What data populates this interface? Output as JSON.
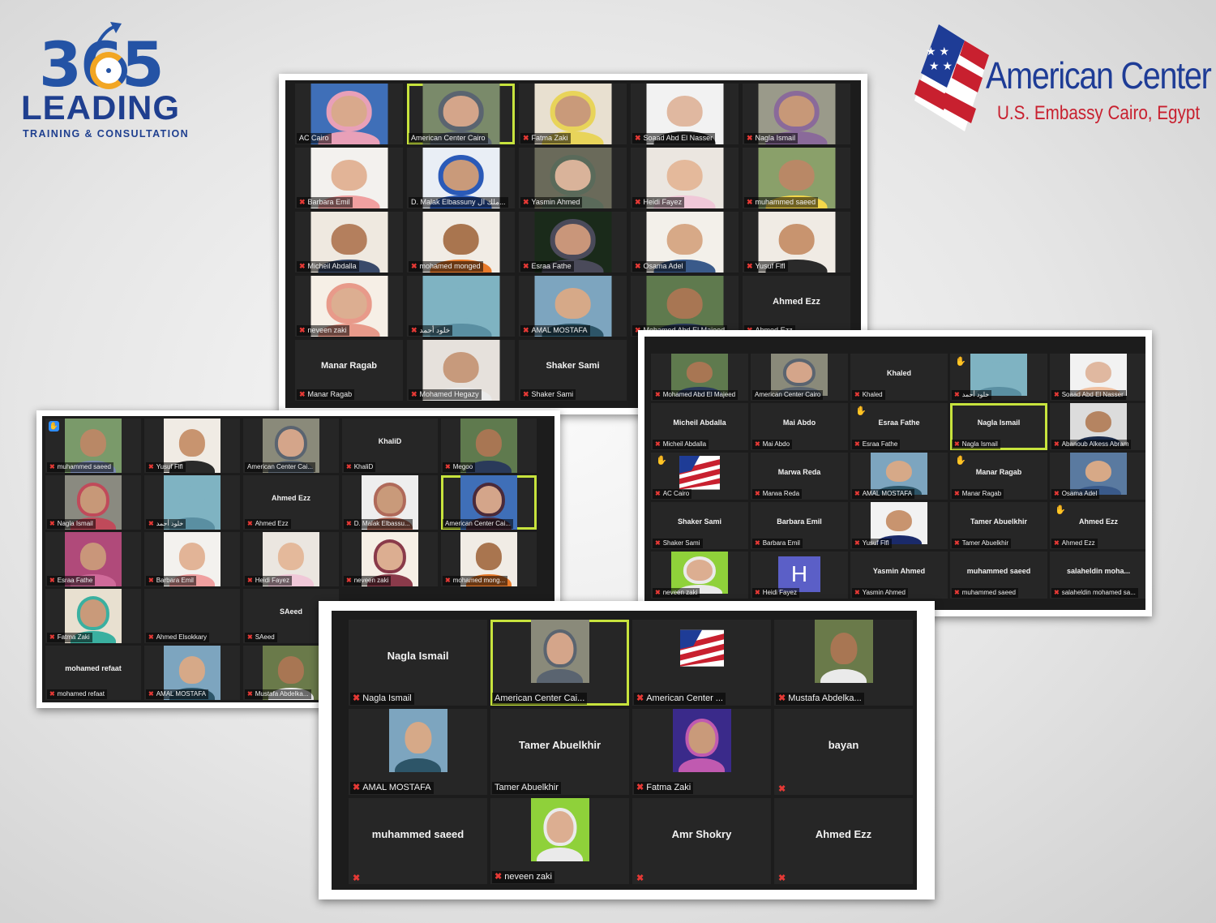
{
  "logos": {
    "leading": {
      "digits": "365",
      "word": "LEADING",
      "sub": "TRAINING & CONSULTATION",
      "colors": {
        "blue": "#2453a5",
        "orange": "#f2a623"
      }
    },
    "american_center": {
      "name": "American Center",
      "tagline": "U.S. Embassy Cairo, Egypt",
      "colors": {
        "blue": "#1e3c96",
        "red": "#c8202f"
      }
    }
  },
  "accent": "#c7e33d",
  "icons": {
    "muted_mic": "muted-mic-icon",
    "raised_hand": "raised-hand-icon",
    "reaction": "clap-reaction-icon"
  },
  "screen1": [
    {
      "name": "AC Cairo",
      "kind": "photo",
      "bg": "#3f6fb8",
      "skin": "#d9a98c",
      "cloth": "#e8a0b8",
      "scarf": true,
      "muted": false
    },
    {
      "name": "American Center Cairo",
      "kind": "photo",
      "bg": "#7a8a6a",
      "skin": "#d4a58a",
      "cloth": "#5a6470",
      "scarf": true,
      "active": true,
      "muted": false
    },
    {
      "name": "Fatma Zaki",
      "kind": "photo",
      "bg": "#e8e0d0",
      "skin": "#c99a7a",
      "cloth": "#e8d45a",
      "scarf": true,
      "muted": true
    },
    {
      "name": "Soaad Abd El Nasser",
      "kind": "photo",
      "bg": "#f2f2f2",
      "skin": "#e0b8a0",
      "cloth": "#2a2a2a",
      "scarf": false,
      "muted": true
    },
    {
      "name": "Nagla Ismail",
      "kind": "photo",
      "bg": "#9a9a8a",
      "skin": "#c79878",
      "cloth": "#8a6a9a",
      "scarf": true,
      "muted": true
    },
    {
      "name": "Barbara Emil",
      "kind": "photo",
      "bg": "#f3f1ee",
      "skin": "#e2b497",
      "cloth": "#f0a0a0",
      "scarf": false,
      "muted": true
    },
    {
      "name": "D. Malak Elbassuny ملك ال...",
      "kind": "photo",
      "bg": "#e9eef5",
      "skin": "#c99a7a",
      "cloth": "#2a5ab8",
      "scarf": true,
      "muted": false
    },
    {
      "name": "Yasmin Ahmed",
      "kind": "photo",
      "bg": "#6a6a5a",
      "skin": "#d9b39a",
      "cloth": "#5a6a5a",
      "scarf": true,
      "muted": true
    },
    {
      "name": "Heidi Fayez",
      "kind": "photo",
      "bg": "#ebe6e0",
      "skin": "#e4b99b",
      "cloth": "#f0c8d8",
      "scarf": false,
      "muted": true
    },
    {
      "name": "muhammed saeed",
      "kind": "photo",
      "bg": "#8aa06a",
      "skin": "#b98866",
      "cloth": "#f5d84a",
      "scarf": false,
      "muted": true
    },
    {
      "name": "Micheil Abdalla",
      "kind": "photo",
      "bg": "#efe9e0",
      "skin": "#b47f5d",
      "cloth": "#3a4a6a",
      "scarf": false,
      "muted": true
    },
    {
      "name": "mohamed monged",
      "kind": "photo",
      "bg": "#f1ece5",
      "skin": "#a9754f",
      "cloth": "#e87a2a",
      "scarf": false,
      "muted": true
    },
    {
      "name": "Esraa Fathe",
      "kind": "photo",
      "bg": "#1a2a1a",
      "skin": "#c9967a",
      "cloth": "#4a4a5a",
      "scarf": true,
      "muted": true
    },
    {
      "name": "Osama Adel",
      "kind": "photo",
      "bg": "#f3f0ea",
      "skin": "#d7a987",
      "cloth": "#3a5a8a",
      "scarf": false,
      "muted": true
    },
    {
      "name": "Yusuf Flfl",
      "kind": "photo",
      "bg": "#f0ebe4",
      "skin": "#c8946f",
      "cloth": "#2a2a2a",
      "scarf": false,
      "muted": true
    },
    {
      "name": "neveen zaki",
      "kind": "photo",
      "bg": "#f6efe6",
      "skin": "#dcae91",
      "cloth": "#e89a8a",
      "scarf": true,
      "muted": true
    },
    {
      "name": "خلود أحمد",
      "kind": "photo",
      "bg": "#7fb3c2",
      "skin": "#7fb3c2",
      "cloth": "#5a8fa2",
      "scarf": false,
      "muted": true
    },
    {
      "name": "AMAL MOSTAFA",
      "kind": "photo",
      "bg": "#7da5bf",
      "skin": "#d6a988",
      "cloth": "#2d5568",
      "scarf": false,
      "muted": true
    },
    {
      "name": "Mohamed Abd El Majeed",
      "kind": "photo",
      "bg": "#5f7a4e",
      "skin": "#a87653",
      "cloth": "#2a3a5a",
      "scarf": false,
      "muted": true
    },
    {
      "name": "Ahmed Ezz",
      "kind": "text",
      "muted": true
    },
    {
      "name": "Manar Ragab",
      "kind": "text",
      "muted": true
    },
    {
      "name": "Mohamed Hegazy",
      "kind": "photo",
      "bg": "#e6e1dc",
      "skin": "#c79a7c",
      "cloth": "#eaeaea",
      "scarf": false,
      "muted": true
    },
    {
      "name": "Shaker Sami",
      "kind": "text",
      "muted": true
    },
    {
      "name": "",
      "kind": "empty",
      "muted": false
    },
    {
      "name": "",
      "kind": "empty",
      "muted": false
    }
  ],
  "screen2": [
    {
      "name": "muhammed saeed",
      "kind": "photo",
      "bg": "#7a9a6a",
      "skin": "#b98866",
      "cloth": "#7a8ab0",
      "scarf": false,
      "muted": true,
      "raise": true
    },
    {
      "name": "Yusuf Flfl",
      "kind": "photo",
      "bg": "#f0ebe4",
      "skin": "#c8946f",
      "cloth": "#2a2a2a",
      "scarf": false,
      "muted": true
    },
    {
      "name": "American Center Cai...",
      "kind": "photo",
      "bg": "#8a8a7a",
      "skin": "#d4a58a",
      "cloth": "#5a6470",
      "scarf": true,
      "muted": false
    },
    {
      "name": "KhaliD",
      "kind": "text",
      "muted": true
    },
    {
      "name": "Megoo",
      "kind": "photo",
      "bg": "#5f7a4e",
      "skin": "#a87653",
      "cloth": "#2a3a5a",
      "scarf": false,
      "muted": true
    },
    {
      "name": "Nagla Ismail",
      "kind": "photo",
      "bg": "#8a8a80",
      "skin": "#c79878",
      "cloth": "#c04a5a",
      "scarf": true,
      "muted": true
    },
    {
      "name": "خلود أحمد",
      "kind": "photo",
      "bg": "#7fb3c2",
      "skin": "#7fb3c2",
      "cloth": "#5a8fa2",
      "scarf": false,
      "muted": true
    },
    {
      "name": "Ahmed Ezz",
      "kind": "text",
      "muted": true
    },
    {
      "name": "D. Malak Elbassu...",
      "kind": "photo",
      "bg": "#eeeeee",
      "skin": "#c99a7a",
      "cloth": "#b06a5a",
      "scarf": true,
      "muted": true
    },
    {
      "name": "American Center Cai...",
      "kind": "photo",
      "bg": "#3f6fb8",
      "skin": "#d4a58a",
      "cloth": "#4a2a3a",
      "scarf": true,
      "muted": false,
      "active": true
    },
    {
      "name": "Esraa Fathe",
      "kind": "photo",
      "bg": "#b04a7a",
      "skin": "#c9967a",
      "cloth": "#d06a9a",
      "scarf": false,
      "muted": true
    },
    {
      "name": "Barbara Emil",
      "kind": "photo",
      "bg": "#f3f1ee",
      "skin": "#e2b497",
      "cloth": "#f0a0a0",
      "scarf": false,
      "muted": true
    },
    {
      "name": "Heidi Fayez",
      "kind": "photo",
      "bg": "#ebe6e0",
      "skin": "#e4b99b",
      "cloth": "#f0c8d8",
      "scarf": false,
      "muted": true
    },
    {
      "name": "neveen zaki",
      "kind": "photo",
      "bg": "#f6efe6",
      "skin": "#dcae91",
      "cloth": "#8a3a4a",
      "scarf": true,
      "muted": true
    },
    {
      "name": "mohamed mong...",
      "kind": "photo",
      "bg": "#f1ece5",
      "skin": "#a9754f",
      "cloth": "#e87a2a",
      "scarf": false,
      "muted": true
    },
    {
      "name": "Fatma Zaki",
      "kind": "photo",
      "bg": "#e8e0d0",
      "skin": "#c99a7a",
      "cloth": "#3ab0a0",
      "scarf": true,
      "muted": true
    },
    {
      "name": "Ahmed Elsokkary",
      "kind": "empty-name",
      "muted": true
    },
    {
      "name": "SAeed",
      "kind": "text",
      "muted": true
    },
    {
      "name": "",
      "kind": "empty",
      "muted": false
    },
    {
      "name": "",
      "kind": "empty",
      "muted": false
    },
    {
      "name": "mohamed refaat",
      "kind": "text",
      "muted": true
    },
    {
      "name": "AMAL MOSTAFA",
      "kind": "photo",
      "bg": "#7da5bf",
      "skin": "#d6a988",
      "cloth": "#2d5568",
      "scarf": false,
      "muted": true
    },
    {
      "name": "Mustafa Abdelka...",
      "kind": "photo",
      "bg": "#6a7a4a",
      "skin": "#a87653",
      "cloth": "#eaeaea",
      "scarf": false,
      "muted": true
    },
    {
      "name": "",
      "kind": "empty",
      "muted": false
    },
    {
      "name": "",
      "kind": "empty",
      "muted": false
    }
  ],
  "screen3": [
    {
      "name": "Mohamed Abd El Majeed",
      "kind": "photo",
      "bg": "#5f7a4e",
      "skin": "#a87653",
      "cloth": "#2a3a5a",
      "scarf": false,
      "muted": true
    },
    {
      "name": "American Center Cairo",
      "kind": "photo",
      "bg": "#8a8a7a",
      "skin": "#d4a58a",
      "cloth": "#5a6470",
      "scarf": true,
      "muted": false
    },
    {
      "name": "Khaled",
      "kind": "text",
      "muted": true
    },
    {
      "name": "خلود أحمد",
      "kind": "photo",
      "bg": "#7fb3c2",
      "skin": "#7fb3c2",
      "cloth": "#5a8fa2",
      "scarf": false,
      "muted": true,
      "hand": true
    },
    {
      "name": "Soaad Abd El Nasser",
      "kind": "photo",
      "bg": "#f2f2f2",
      "skin": "#e0b8a0",
      "cloth": "#f0c0a0",
      "scarf": false,
      "muted": true
    },
    {
      "name": "Micheil Abdalla",
      "kind": "text",
      "muted": true
    },
    {
      "name": "Mai Abdo",
      "kind": "text",
      "muted": true
    },
    {
      "name": "Esraa Fathe",
      "kind": "text",
      "muted": true,
      "hand": true
    },
    {
      "name": "Nagla Ismail",
      "kind": "text",
      "muted": true,
      "active": true
    },
    {
      "name": "Abanoub Alkess Abram",
      "kind": "photo",
      "bg": "#dcdcdc",
      "skin": "#b58461",
      "cloth": "#1a2a4a",
      "scarf": false,
      "muted": true
    },
    {
      "name": "AC Cairo",
      "kind": "flag",
      "muted": true,
      "hand": true
    },
    {
      "name": "Marwa Reda",
      "kind": "text",
      "muted": true
    },
    {
      "name": "AMAL MOSTAFA",
      "kind": "photo",
      "bg": "#7da5bf",
      "skin": "#d6a988",
      "cloth": "#2d5568",
      "scarf": false,
      "muted": true
    },
    {
      "name": "Manar Ragab",
      "kind": "text",
      "muted": true,
      "hand": true
    },
    {
      "name": "Osama Adel",
      "kind": "photo",
      "bg": "#5a7aa0",
      "skin": "#d7a987",
      "cloth": "#3a5a8a",
      "scarf": false,
      "muted": true
    },
    {
      "name": "Shaker Sami",
      "kind": "text",
      "muted": true
    },
    {
      "name": "Barbara Emil",
      "kind": "text",
      "muted": true
    },
    {
      "name": "Yusuf Flfl",
      "kind": "photo",
      "bg": "#f2f2f2",
      "skin": "#c8946f",
      "cloth": "#1a2a6a",
      "scarf": false,
      "muted": true
    },
    {
      "name": "Tamer Abuelkhir",
      "kind": "text",
      "muted": true
    },
    {
      "name": "Ahmed Ezz",
      "kind": "text",
      "muted": true,
      "hand": true
    },
    {
      "name": "neveen zaki",
      "kind": "photo",
      "bg": "#8fd13a",
      "skin": "#dcae91",
      "cloth": "#eaeaea",
      "scarf": true,
      "muted": true
    },
    {
      "name": "Heidi Fayez",
      "kind": "letter",
      "letter": "H",
      "muted": true
    },
    {
      "name": "Yasmin Ahmed",
      "kind": "text",
      "muted": true
    },
    {
      "name": "muhammed saeed",
      "kind": "text",
      "muted": true
    },
    {
      "name": "salaheldin moha...",
      "label": "salaheldin mohamed sa...",
      "kind": "text",
      "muted": true
    }
  ],
  "screen4": [
    {
      "name": "Nagla Ismail",
      "kind": "text",
      "muted": true
    },
    {
      "name": "American Center Cai...",
      "kind": "photo",
      "bg": "#8a8a7a",
      "skin": "#d4a58a",
      "cloth": "#5a6470",
      "scarf": true,
      "muted": false,
      "active": true
    },
    {
      "name": "American Center ...",
      "kind": "flag",
      "muted": true
    },
    {
      "name": "Mustafa Abdelka...",
      "kind": "photo",
      "bg": "#6a7a4a",
      "skin": "#a87653",
      "cloth": "#eaeaea",
      "scarf": false,
      "muted": true
    },
    {
      "name": "AMAL MOSTAFA",
      "kind": "photo",
      "bg": "#7da5bf",
      "skin": "#d6a988",
      "cloth": "#2d5568",
      "scarf": false,
      "muted": true
    },
    {
      "name": "Tamer Abuelkhir",
      "kind": "text",
      "muted": false
    },
    {
      "name": "Fatma Zaki",
      "kind": "photo",
      "bg": "#3a2a8a",
      "skin": "#c99a7a",
      "cloth": "#c05ab0",
      "scarf": true,
      "muted": true
    },
    {
      "name": "bayan",
      "kind": "text",
      "muted": true,
      "nolabel": true
    },
    {
      "name": "muhammed saeed",
      "kind": "text",
      "muted": true,
      "nolabel": true
    },
    {
      "name": "neveen zaki",
      "kind": "photo",
      "bg": "#8fd13a",
      "skin": "#dcae91",
      "cloth": "#eaeaea",
      "scarf": true,
      "muted": true
    },
    {
      "name": "Amr Shokry",
      "kind": "text",
      "muted": true,
      "nolabel": true
    },
    {
      "name": "Ahmed Ezz",
      "kind": "text",
      "muted": true,
      "nolabel": true
    }
  ]
}
